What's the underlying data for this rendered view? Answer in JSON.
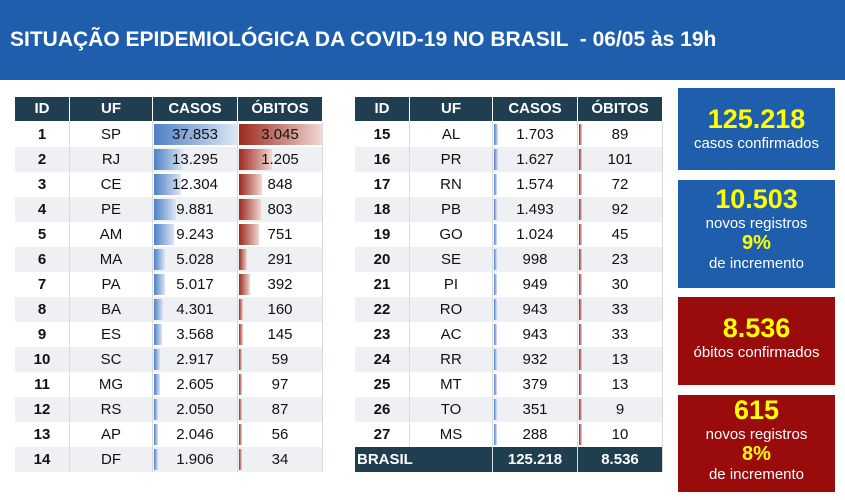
{
  "header": {
    "title": "SITUAÇÃO EPIDEMIOLÓGICA DA COVID-19 NO BRASIL  - 06/05 às 19h"
  },
  "tables": [
    {
      "columns": [
        "ID",
        "UF",
        "CASOS",
        "ÓBITOS"
      ],
      "rows": [
        [
          "1",
          "SP",
          "37.853",
          "3.045"
        ],
        [
          "2",
          "RJ",
          "13.295",
          "1.205"
        ],
        [
          "3",
          "CE",
          "12.304",
          "848"
        ],
        [
          "4",
          "PE",
          "9.881",
          "803"
        ],
        [
          "5",
          "AM",
          "9.243",
          "751"
        ],
        [
          "6",
          "MA",
          "5.028",
          "291"
        ],
        [
          "7",
          "PA",
          "5.017",
          "392"
        ],
        [
          "8",
          "BA",
          "4.301",
          "160"
        ],
        [
          "9",
          "ES",
          "3.568",
          "145"
        ],
        [
          "10",
          "SC",
          "2.917",
          "59"
        ],
        [
          "11",
          "MG",
          "2.605",
          "97"
        ],
        [
          "12",
          "RS",
          "2.050",
          "87"
        ],
        [
          "13",
          "AP",
          "2.046",
          "56"
        ],
        [
          "14",
          "DF",
          "1.906",
          "34"
        ]
      ]
    },
    {
      "columns": [
        "ID",
        "UF",
        "CASOS",
        "ÓBITOS"
      ],
      "rows": [
        [
          "15",
          "AL",
          "1.703",
          "89"
        ],
        [
          "16",
          "PR",
          "1.627",
          "101"
        ],
        [
          "17",
          "RN",
          "1.574",
          "72"
        ],
        [
          "18",
          "PB",
          "1.493",
          "92"
        ],
        [
          "19",
          "GO",
          "1.024",
          "45"
        ],
        [
          "20",
          "SE",
          "998",
          "23"
        ],
        [
          "21",
          "PI",
          "949",
          "30"
        ],
        [
          "22",
          "RO",
          "943",
          "33"
        ],
        [
          "23",
          "AC",
          "943",
          "33"
        ],
        [
          "24",
          "RR",
          "932",
          "13"
        ],
        [
          "25",
          "MT",
          "379",
          "13"
        ],
        [
          "26",
          "TO",
          "351",
          "9"
        ],
        [
          "27",
          "MS",
          "288",
          "10"
        ]
      ],
      "total": [
        "BRASIL",
        "125.218",
        "8.536"
      ]
    }
  ],
  "cards": [
    {
      "value": "125.218",
      "label": "casos confirmados"
    },
    {
      "value": "10.503",
      "label": "novos registros",
      "pct": "9%",
      "pct_label": "de incremento"
    },
    {
      "value": "8.536",
      "label": "óbitos confirmados"
    },
    {
      "value": "615",
      "label": "novos registros",
      "pct": "8%",
      "pct_label": "de incremento"
    }
  ]
}
